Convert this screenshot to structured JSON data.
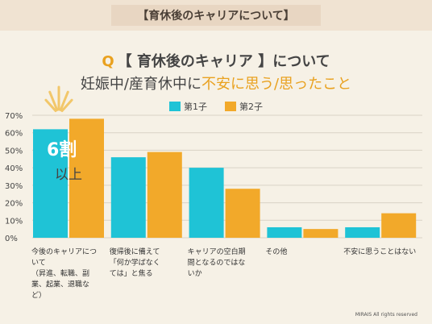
{
  "banner": {
    "title": "【育休後のキャリアについて】"
  },
  "heading": {
    "q_mark": "Q",
    "line1": "【 育休後のキャリア 】について",
    "line2_prefix": "妊娠中/産育休中に",
    "line2_highlight": "不安に思う/思ったこと"
  },
  "legend": [
    {
      "label": "第1子",
      "color": "#1fc3d6"
    },
    {
      "label": "第2子",
      "color": "#f2a92a"
    }
  ],
  "annotation": {
    "line1": "6割",
    "line2": "以上"
  },
  "footer": "MIRAIS All rights reserved",
  "chart_data": {
    "type": "bar",
    "categories": [
      "今後のキャリアについて（昇進、転職、副業、起業、退職など）",
      "復帰後に備えて「何か学ばなくては」と焦る",
      "キャリアの空白期間となるのではないか",
      "その他",
      "不安に思うことはない"
    ],
    "category_lines": [
      [
        "今後のキャリアにつ",
        "いて",
        "（昇進、転職、副",
        "業、起業、退職な",
        "ど）"
      ],
      [
        "復帰後に備えて",
        "「何か学ばなく",
        "ては」と焦る"
      ],
      [
        "キャリアの空白期",
        "間となるのではな",
        "いか"
      ],
      [
        "その他"
      ],
      [
        "不安に思うことはない"
      ]
    ],
    "series": [
      {
        "name": "第1子",
        "values": [
          62,
          46,
          40,
          6,
          6
        ]
      },
      {
        "name": "第2子",
        "values": [
          68,
          49,
          28,
          5,
          14
        ]
      }
    ],
    "yticks": [
      "0%",
      "10%",
      "20%",
      "30%",
      "40%",
      "50%",
      "60%",
      "70%"
    ],
    "ylim": [
      0,
      70
    ],
    "grid": true,
    "legend_position": "top-center"
  }
}
